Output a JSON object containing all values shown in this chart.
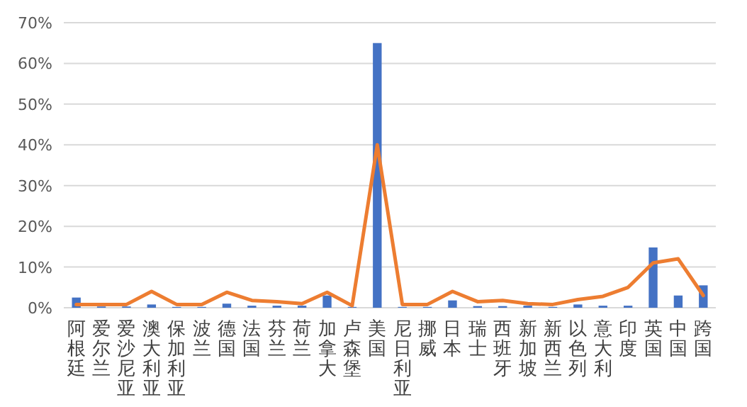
{
  "chart_data": {
    "type": "bar",
    "categories": [
      "阿根廷",
      "爱尔兰",
      "爱沙尼亚",
      "澳大利亚",
      "保加利亚",
      "波兰",
      "德国",
      "法国",
      "芬兰",
      "荷兰",
      "加拿大",
      "卢森堡",
      "美国",
      "尼日利亚",
      "挪威",
      "日本",
      "瑞士",
      "西班牙",
      "新加坡",
      "新西兰",
      "以色列",
      "意大利",
      "印度",
      "英国",
      "中国",
      "跨国"
    ],
    "series": [
      {
        "color": "#4472c4",
        "values": [
          2.5,
          0.3,
          0.3,
          0.8,
          0.2,
          0.2,
          1.0,
          0.5,
          0.5,
          0.5,
          3.0,
          0.2,
          65,
          0.2,
          0.2,
          1.8,
          0.4,
          0.4,
          0.5,
          0.2,
          0.8,
          0.5,
          0.5,
          14.8,
          3.0,
          5.5
        ]
      },
      {
        "type": "line",
        "color": "#ed7d31",
        "values": [
          0.8,
          0.8,
          0.8,
          4.0,
          0.8,
          0.8,
          3.8,
          1.8,
          1.5,
          1.0,
          3.8,
          0.5,
          40,
          0.8,
          0.8,
          4.0,
          1.5,
          1.8,
          1.0,
          0.8,
          2.0,
          2.8,
          5.0,
          11.0,
          12.0,
          3.0
        ]
      }
    ],
    "ylim": [
      0,
      70
    ],
    "yticks": [
      {
        "value": 0,
        "label": "0%"
      },
      {
        "value": 10,
        "label": "10%"
      },
      {
        "value": 20,
        "label": "20%"
      },
      {
        "value": 30,
        "label": "30%"
      },
      {
        "value": 40,
        "label": "40%"
      },
      {
        "value": 50,
        "label": "50%"
      },
      {
        "value": 60,
        "label": "60%"
      },
      {
        "value": 70,
        "label": "70%"
      }
    ],
    "grid": "y"
  }
}
